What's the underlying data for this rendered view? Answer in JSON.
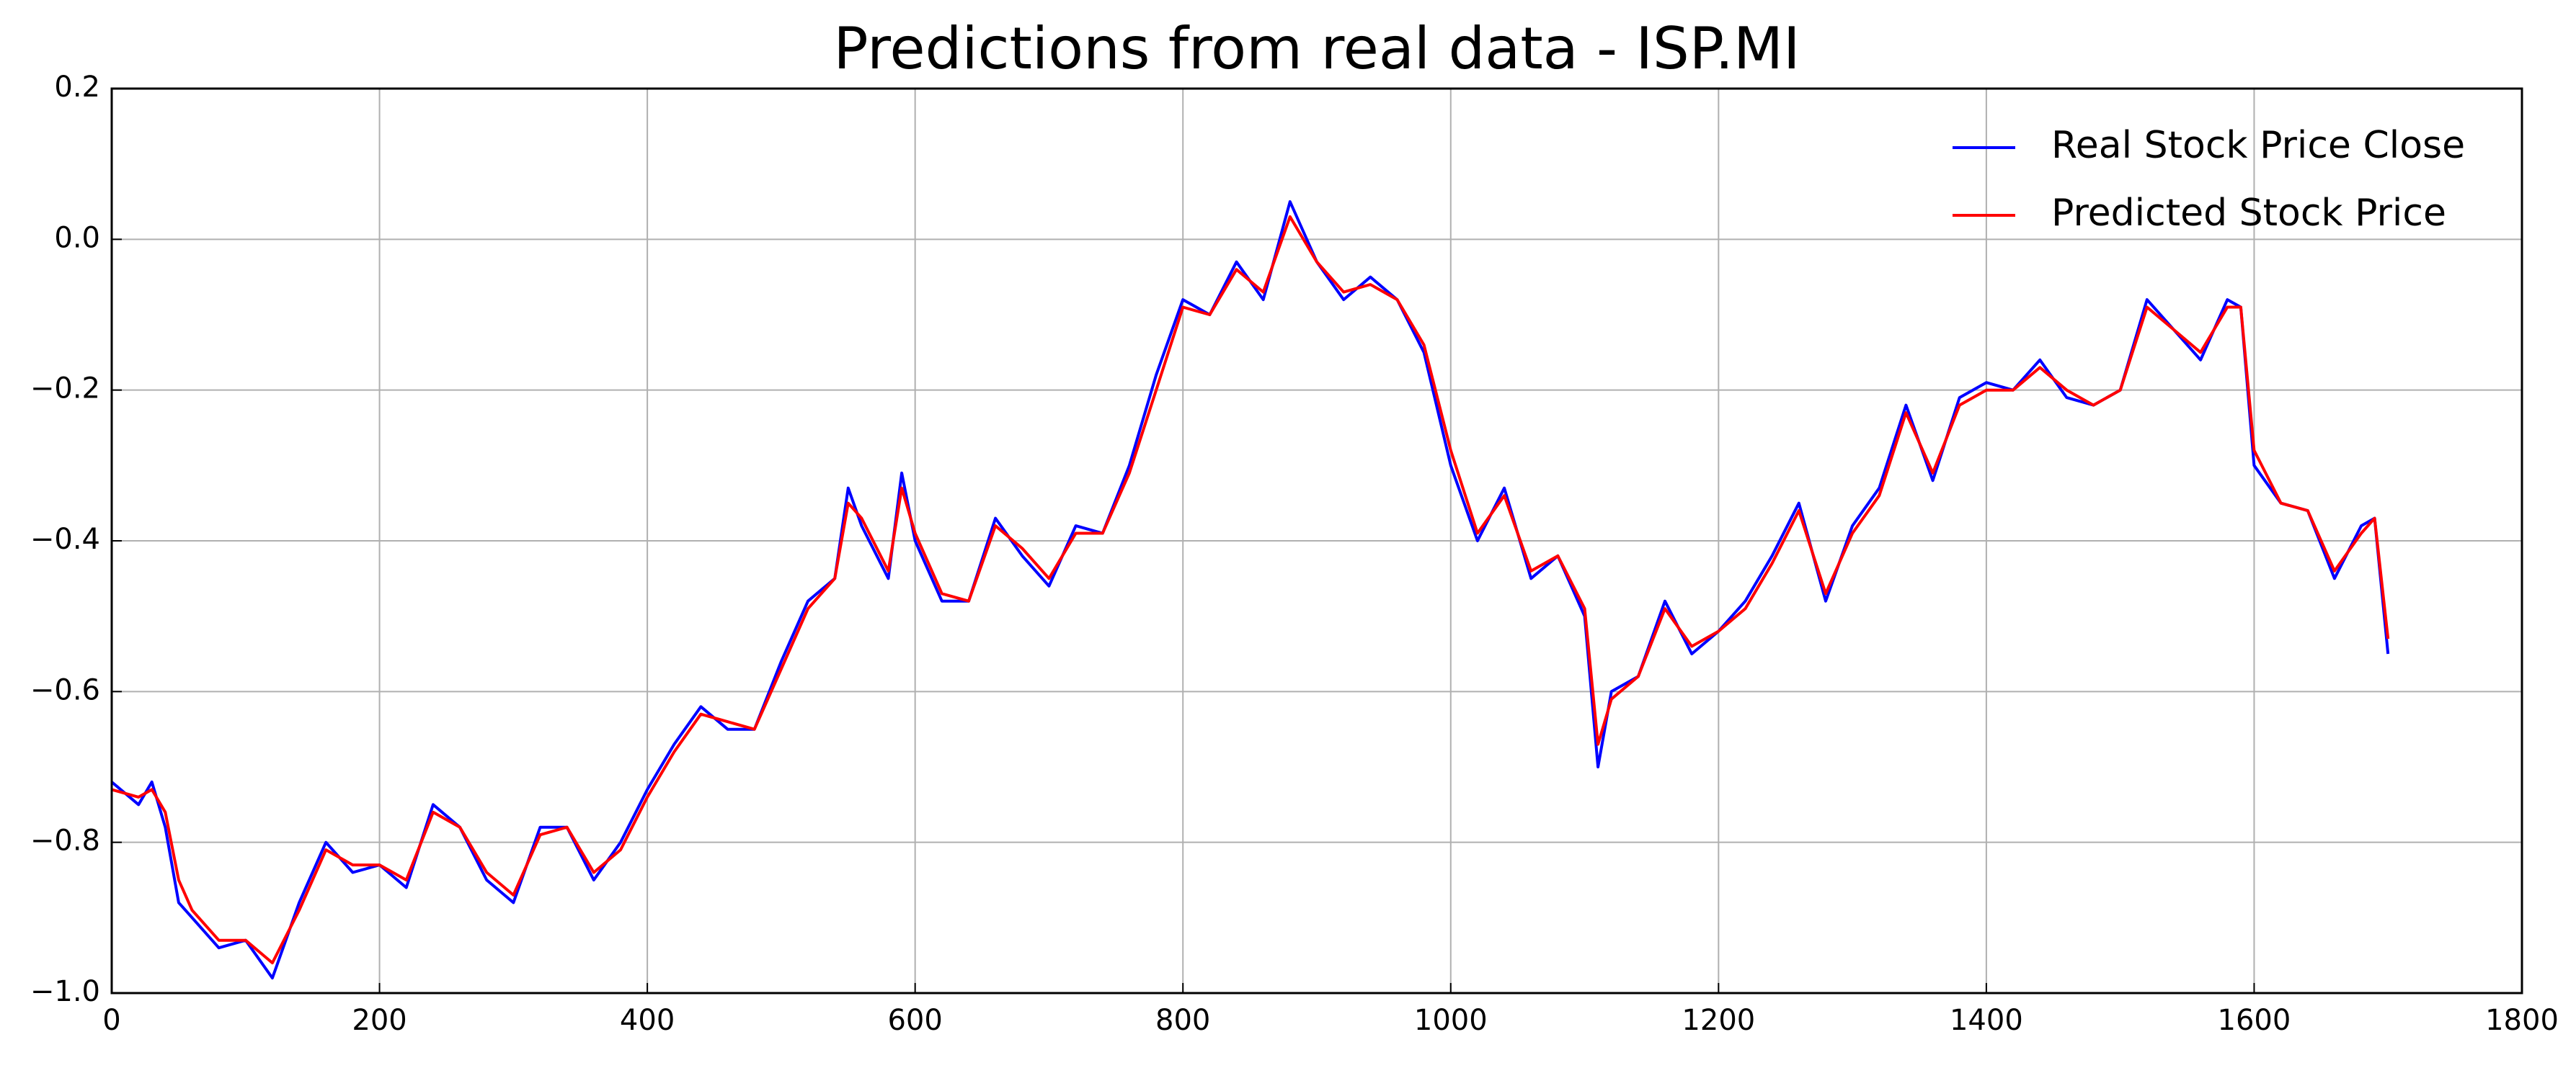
{
  "chart_data": {
    "type": "line",
    "title": "Predictions from real data - ISP.MI",
    "x": [
      0,
      20,
      30,
      40,
      50,
      60,
      80,
      100,
      120,
      140,
      160,
      180,
      200,
      220,
      240,
      260,
      280,
      300,
      320,
      340,
      360,
      380,
      400,
      420,
      440,
      460,
      480,
      500,
      520,
      540,
      550,
      560,
      580,
      590,
      600,
      620,
      640,
      660,
      680,
      700,
      720,
      740,
      760,
      780,
      800,
      820,
      840,
      860,
      880,
      900,
      920,
      940,
      960,
      980,
      1000,
      1020,
      1040,
      1060,
      1080,
      1100,
      1110,
      1120,
      1140,
      1160,
      1180,
      1200,
      1220,
      1240,
      1260,
      1280,
      1300,
      1320,
      1340,
      1360,
      1380,
      1400,
      1420,
      1440,
      1460,
      1480,
      1500,
      1520,
      1540,
      1560,
      1580,
      1590,
      1600,
      1620,
      1640,
      1660,
      1680,
      1690,
      1700
    ],
    "series": [
      {
        "name": "Real Stock Price Close",
        "color": "#0000ff",
        "values": [
          -0.72,
          -0.75,
          -0.72,
          -0.78,
          -0.88,
          -0.9,
          -0.94,
          -0.93,
          -0.98,
          -0.88,
          -0.8,
          -0.84,
          -0.83,
          -0.86,
          -0.75,
          -0.78,
          -0.85,
          -0.88,
          -0.78,
          -0.78,
          -0.85,
          -0.8,
          -0.73,
          -0.67,
          -0.62,
          -0.65,
          -0.65,
          -0.56,
          -0.48,
          -0.45,
          -0.33,
          -0.38,
          -0.45,
          -0.31,
          -0.4,
          -0.48,
          -0.48,
          -0.37,
          -0.42,
          -0.46,
          -0.38,
          -0.39,
          -0.3,
          -0.18,
          -0.08,
          -0.1,
          -0.03,
          -0.08,
          0.05,
          -0.03,
          -0.08,
          -0.05,
          -0.08,
          -0.15,
          -0.3,
          -0.4,
          -0.33,
          -0.45,
          -0.42,
          -0.5,
          -0.7,
          -0.6,
          -0.58,
          -0.48,
          -0.55,
          -0.52,
          -0.48,
          -0.42,
          -0.35,
          -0.48,
          -0.38,
          -0.33,
          -0.22,
          -0.32,
          -0.21,
          -0.19,
          -0.2,
          -0.16,
          -0.21,
          -0.22,
          -0.2,
          -0.08,
          -0.12,
          -0.16,
          -0.08,
          -0.09,
          -0.3,
          -0.35,
          -0.36,
          -0.45,
          -0.38,
          -0.37,
          -0.55
        ]
      },
      {
        "name": "Predicted Stock Price",
        "color": "#ff0000",
        "values": [
          -0.73,
          -0.74,
          -0.73,
          -0.76,
          -0.85,
          -0.89,
          -0.93,
          -0.93,
          -0.96,
          -0.89,
          -0.81,
          -0.83,
          -0.83,
          -0.85,
          -0.76,
          -0.78,
          -0.84,
          -0.87,
          -0.79,
          -0.78,
          -0.84,
          -0.81,
          -0.74,
          -0.68,
          -0.63,
          -0.64,
          -0.65,
          -0.57,
          -0.49,
          -0.45,
          -0.35,
          -0.37,
          -0.44,
          -0.33,
          -0.39,
          -0.47,
          -0.48,
          -0.38,
          -0.41,
          -0.45,
          -0.39,
          -0.39,
          -0.31,
          -0.2,
          -0.09,
          -0.1,
          -0.04,
          -0.07,
          0.03,
          -0.03,
          -0.07,
          -0.06,
          -0.08,
          -0.14,
          -0.28,
          -0.39,
          -0.34,
          -0.44,
          -0.42,
          -0.49,
          -0.67,
          -0.61,
          -0.58,
          -0.49,
          -0.54,
          -0.52,
          -0.49,
          -0.43,
          -0.36,
          -0.47,
          -0.39,
          -0.34,
          -0.23,
          -0.31,
          -0.22,
          -0.2,
          -0.2,
          -0.17,
          -0.2,
          -0.22,
          -0.2,
          -0.09,
          -0.12,
          -0.15,
          -0.09,
          -0.09,
          -0.28,
          -0.35,
          -0.36,
          -0.44,
          -0.39,
          -0.37,
          -0.53
        ]
      }
    ],
    "xlim": [
      0,
      1800
    ],
    "xticks": [
      0,
      200,
      400,
      600,
      800,
      1000,
      1200,
      1400,
      1600,
      1800
    ],
    "ylim": [
      -1.0,
      0.2
    ],
    "yticks": [
      {
        "value": -1.0,
        "label": "−1.0"
      },
      {
        "value": -0.8,
        "label": "−0.8"
      },
      {
        "value": -0.6,
        "label": "−0.6"
      },
      {
        "value": -0.4,
        "label": "−0.4"
      },
      {
        "value": -0.2,
        "label": "−0.2"
      },
      {
        "value": 0,
        "label": "0.0"
      },
      0.2
    ],
    "grid": true,
    "legend": "upper right"
  }
}
